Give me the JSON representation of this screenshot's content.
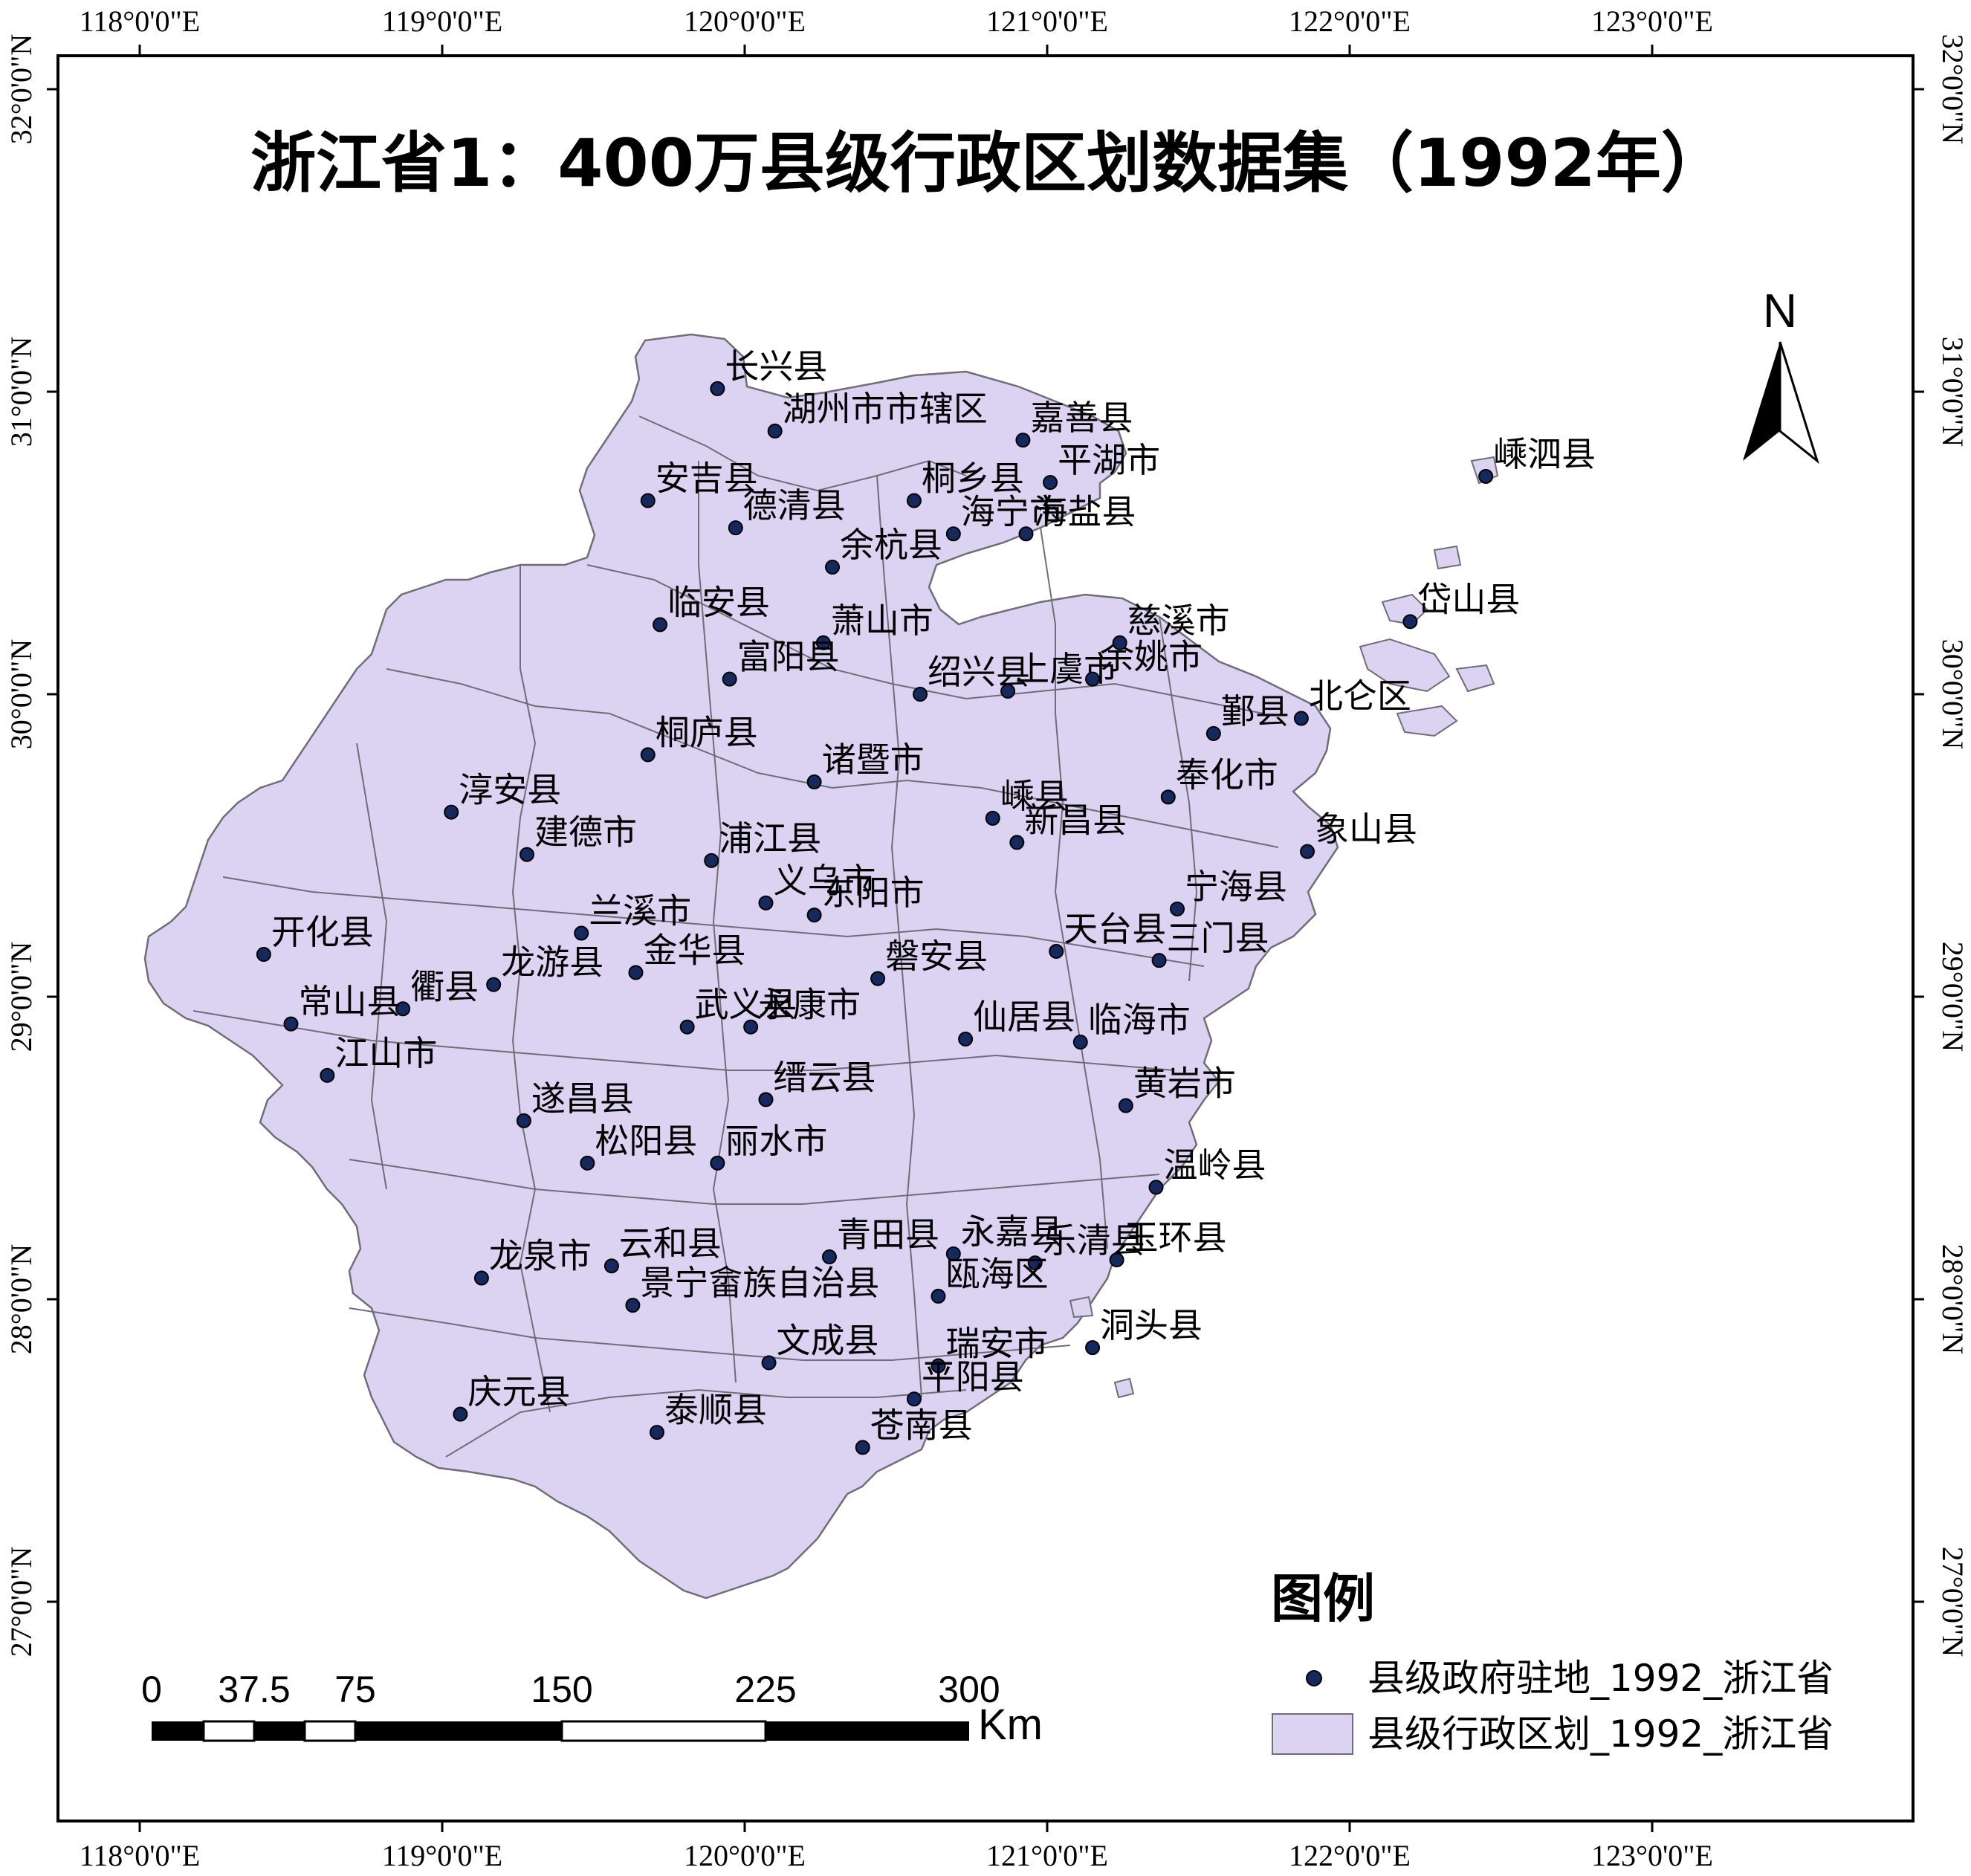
{
  "title": "浙江省1：400万县级行政区划数据集（1992年）",
  "north_arrow": "N",
  "lon_labels": [
    "118°0'0\"E",
    "119°0'0\"E",
    "120°0'0\"E",
    "121°0'0\"E",
    "122°0'0\"E",
    "123°0'0\"E"
  ],
  "lat_labels": [
    "32°0'0\"N",
    "31°0'0\"N",
    "30°0'0\"N",
    "29°0'0\"N",
    "28°0'0\"N",
    "27°0'0\"N"
  ],
  "legend": {
    "title": "图例",
    "items": [
      {
        "label": "县级政府驻地_1992_浙江省",
        "symbol": "point",
        "color": "#15295e"
      },
      {
        "label": "县级行政区划_1992_浙江省",
        "symbol": "polygon",
        "color": "#dcd3f3"
      }
    ]
  },
  "scale_bar": {
    "labels": [
      "0",
      "37.5",
      "75",
      "150",
      "225",
      "300"
    ],
    "unit": "Km"
  },
  "colors": {
    "fill": "#dcd3f3",
    "border": "#6e6e78",
    "point": "#15295e"
  },
  "places": [
    {
      "name": "长兴县",
      "lon": 119.91,
      "lat": 31.01
    },
    {
      "name": "湖州市市辖区",
      "lon": 120.1,
      "lat": 30.87
    },
    {
      "name": "嘉善县",
      "lon": 120.92,
      "lat": 30.84
    },
    {
      "name": "安吉县",
      "lon": 119.68,
      "lat": 30.64
    },
    {
      "name": "桐乡县",
      "lon": 120.56,
      "lat": 30.64
    },
    {
      "name": "平湖市",
      "lon": 121.01,
      "lat": 30.7
    },
    {
      "name": "德清县",
      "lon": 119.97,
      "lat": 30.55
    },
    {
      "name": "海盐县",
      "lon": 120.93,
      "lat": 30.53
    },
    {
      "name": "海宁市",
      "lon": 120.69,
      "lat": 30.53
    },
    {
      "name": "余杭县",
      "lon": 120.29,
      "lat": 30.42
    },
    {
      "name": "嵊泗县",
      "lon": 122.45,
      "lat": 30.72
    },
    {
      "name": "临安县",
      "lon": 119.72,
      "lat": 30.23
    },
    {
      "name": "萧山市",
      "lon": 120.26,
      "lat": 30.17
    },
    {
      "name": "富阳县",
      "lon": 119.95,
      "lat": 30.05
    },
    {
      "name": "上虞市",
      "lon": 120.87,
      "lat": 30.01
    },
    {
      "name": "余姚市",
      "lon": 121.15,
      "lat": 30.05
    },
    {
      "name": "慈溪市",
      "lon": 121.24,
      "lat": 30.17
    },
    {
      "name": "绍兴县",
      "lon": 120.58,
      "lat": 30.0
    },
    {
      "name": "岱山县",
      "lon": 122.2,
      "lat": 30.24
    },
    {
      "name": "鄞县",
      "lon": 121.55,
      "lat": 29.87
    },
    {
      "name": "北仑区",
      "lon": 121.84,
      "lat": 29.92
    },
    {
      "name": "桐庐县",
      "lon": 119.68,
      "lat": 29.8
    },
    {
      "name": "诸暨市",
      "lon": 120.23,
      "lat": 29.71
    },
    {
      "name": "淳安县",
      "lon": 119.03,
      "lat": 29.61
    },
    {
      "name": "嵊县",
      "lon": 120.82,
      "lat": 29.59
    },
    {
      "name": "奉化市",
      "lon": 121.4,
      "lat": 29.66
    },
    {
      "name": "建德市",
      "lon": 119.28,
      "lat": 29.47
    },
    {
      "name": "浦江县",
      "lon": 119.89,
      "lat": 29.45
    },
    {
      "name": "新昌县",
      "lon": 120.9,
      "lat": 29.51
    },
    {
      "name": "象山县",
      "lon": 121.86,
      "lat": 29.48
    },
    {
      "name": "义乌市",
      "lon": 120.07,
      "lat": 29.31
    },
    {
      "name": "宁海县",
      "lon": 121.43,
      "lat": 29.29
    },
    {
      "name": "兰溪市",
      "lon": 119.46,
      "lat": 29.21
    },
    {
      "name": "东阳市",
      "lon": 120.23,
      "lat": 29.27
    },
    {
      "name": "开化县",
      "lon": 118.41,
      "lat": 29.14
    },
    {
      "name": "天台县",
      "lon": 121.03,
      "lat": 29.15
    },
    {
      "name": "金华县",
      "lon": 119.64,
      "lat": 29.08
    },
    {
      "name": "三门县",
      "lon": 121.37,
      "lat": 29.12
    },
    {
      "name": "龙游县",
      "lon": 119.17,
      "lat": 29.04
    },
    {
      "name": "磐安县",
      "lon": 120.44,
      "lat": 29.06
    },
    {
      "name": "衢县",
      "lon": 118.87,
      "lat": 28.96
    },
    {
      "name": "常山县",
      "lon": 118.5,
      "lat": 28.91
    },
    {
      "name": "武义县",
      "lon": 119.81,
      "lat": 28.9
    },
    {
      "name": "永康市",
      "lon": 120.02,
      "lat": 28.9
    },
    {
      "name": "仙居县",
      "lon": 120.73,
      "lat": 28.86
    },
    {
      "name": "临海市",
      "lon": 121.11,
      "lat": 28.85
    },
    {
      "name": "江山市",
      "lon": 118.62,
      "lat": 28.74
    },
    {
      "name": "黄岩市",
      "lon": 121.26,
      "lat": 28.64
    },
    {
      "name": "缙云县",
      "lon": 120.07,
      "lat": 28.66
    },
    {
      "name": "遂昌县",
      "lon": 119.27,
      "lat": 28.59
    },
    {
      "name": "松阳县",
      "lon": 119.48,
      "lat": 28.45
    },
    {
      "name": "丽水市",
      "lon": 119.91,
      "lat": 28.45
    },
    {
      "name": "温岭县",
      "lon": 121.36,
      "lat": 28.37
    },
    {
      "name": "青田县",
      "lon": 120.28,
      "lat": 28.14
    },
    {
      "name": "永嘉县",
      "lon": 120.69,
      "lat": 28.15
    },
    {
      "name": "玉环县",
      "lon": 121.23,
      "lat": 28.13
    },
    {
      "name": "龙泉市",
      "lon": 119.13,
      "lat": 28.07
    },
    {
      "name": "云和县",
      "lon": 119.56,
      "lat": 28.11
    },
    {
      "name": "乐清县",
      "lon": 120.96,
      "lat": 28.12
    },
    {
      "name": "景宁畲族自治县",
      "lon": 119.63,
      "lat": 27.98
    },
    {
      "name": "瓯海区",
      "lon": 120.64,
      "lat": 28.01
    },
    {
      "name": "文成县",
      "lon": 120.08,
      "lat": 27.79
    },
    {
      "name": "瑞安市",
      "lon": 120.64,
      "lat": 27.78
    },
    {
      "name": "洞头县",
      "lon": 121.15,
      "lat": 27.84
    },
    {
      "name": "平阳县",
      "lon": 120.56,
      "lat": 27.67
    },
    {
      "name": "庆元县",
      "lon": 119.06,
      "lat": 27.62
    },
    {
      "name": "泰顺县",
      "lon": 119.71,
      "lat": 27.56
    },
    {
      "name": "苍南县",
      "lon": 120.39,
      "lat": 27.51
    }
  ]
}
